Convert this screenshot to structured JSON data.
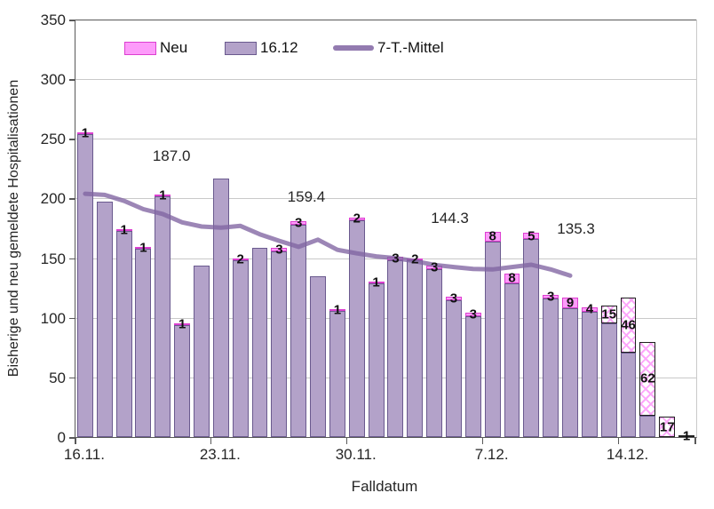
{
  "chart_data": {
    "type": "bar",
    "stacked": true,
    "title": "",
    "xlabel": "Falldatum",
    "ylabel": "Bisherige und neu gemeldete Hospitalisationen",
    "ylim": [
      0,
      350
    ],
    "yticks": [
      0,
      50,
      100,
      150,
      200,
      250,
      300,
      350
    ],
    "grid": true,
    "legend_position": "top",
    "categories": [
      "16.11.",
      "17.11.",
      "18.11.",
      "19.11.",
      "20.11.",
      "21.11.",
      "22.11.",
      "23.11.",
      "24.11.",
      "25.11.",
      "26.11.",
      "27.11.",
      "28.11.",
      "29.11.",
      "30.11.",
      "1.12.",
      "2.12.",
      "3.12.",
      "4.12.",
      "5.12.",
      "6.12.",
      "7.12.",
      "8.12.",
      "9.12.",
      "10.12.",
      "11.12.",
      "12.12.",
      "13.12.",
      "14.12.",
      "15.12.",
      "16.12.",
      "17.12."
    ],
    "xtick_labels": [
      "16.11.",
      "23.11.",
      "30.11.",
      "7.12.",
      "14.12."
    ],
    "xtick_bar_indices": [
      0,
      7,
      14,
      21,
      28
    ],
    "xtick_boundaries": [
      0,
      7,
      14,
      21,
      28,
      32
    ],
    "series": [
      {
        "name": "16.12",
        "type": "bar",
        "role": "base",
        "values": [
          254,
          197,
          173,
          158,
          202,
          94,
          144,
          217,
          148,
          159,
          156,
          178,
          135,
          106,
          182,
          129,
          148,
          148,
          141,
          115,
          101,
          164,
          129,
          166,
          116,
          108,
          105,
          95,
          71,
          18,
          0,
          0
        ]
      },
      {
        "name": "Neu",
        "type": "bar",
        "role": "new",
        "values": [
          1,
          0,
          1,
          1,
          1,
          1,
          0,
          0,
          2,
          0,
          3,
          3,
          0,
          1,
          2,
          1,
          3,
          2,
          3,
          3,
          3,
          8,
          8,
          5,
          3,
          9,
          4,
          15,
          46,
          62,
          17,
          1
        ]
      },
      {
        "name": "7-T.-Mittel",
        "type": "line",
        "values": [
          204,
          203,
          198,
          191,
          187,
          180,
          176.5,
          175.5,
          177,
          170,
          164.5,
          159.4,
          165.5,
          157,
          154,
          151.5,
          150,
          147.5,
          144.3,
          142.5,
          141,
          140.5,
          142.5,
          144.5,
          140.5,
          135.3,
          null,
          null,
          null,
          null,
          null,
          null
        ]
      }
    ],
    "hatch_from_index": 27,
    "bar_labels_note": "Neu values > 0 are printed at the top of each stacked bar",
    "annotations": [
      {
        "text": "187.0",
        "x": 4.95,
        "y": 235
      },
      {
        "text": "159.4",
        "x": 11.9,
        "y": 201
      },
      {
        "text": "144.3",
        "x": 19.3,
        "y": 183
      },
      {
        "text": "135.3",
        "x": 25.8,
        "y": 174
      }
    ],
    "colors": {
      "bar_base_fill": "#b3a2c9",
      "bar_base_border": "#6a5a8e",
      "bar_new_fill": "#fd9bfa",
      "bar_new_border": "#dc3fd0",
      "bar_new_hatch_border": "#1f1f1f",
      "line": "#8064a2",
      "gridline": "#c9c9c9",
      "axis": "#595959",
      "text": "#262626"
    }
  },
  "legend": {
    "items": [
      {
        "label": "Neu",
        "swatch": "pink"
      },
      {
        "label": "16.12",
        "swatch": "purple"
      },
      {
        "label": "7-T.-Mittel",
        "swatch": "line"
      }
    ]
  }
}
